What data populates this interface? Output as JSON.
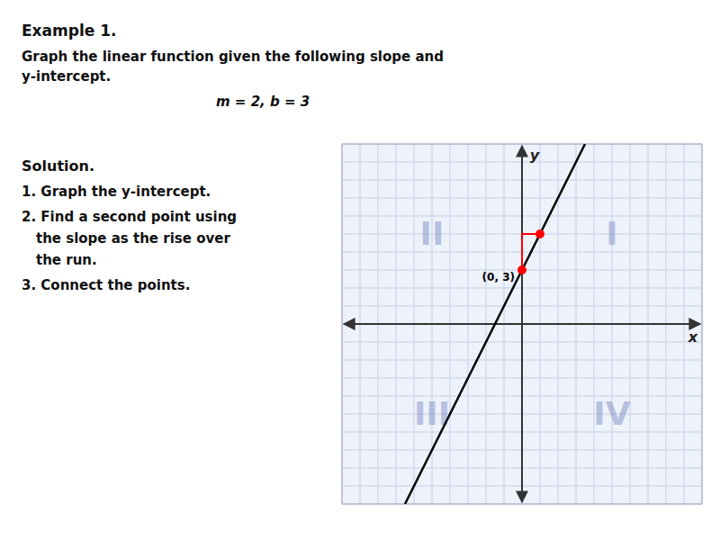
{
  "chart_data": {
    "type": "line",
    "title": "Example 1.",
    "annotations": [
      {
        "text": "Graph the linear function given the following slope and"
      },
      {
        "text": "y-intercept."
      },
      {
        "text": "m = 2, b = 3"
      },
      {
        "text": "Solution."
      },
      {
        "text": "1. Graph the y-intercept."
      },
      {
        "text": "2. Find a second point using"
      },
      {
        "text": "the slope as the rise over"
      },
      {
        "text": "the run."
      },
      {
        "text": "3. Connect the points."
      },
      {
        "text": "II",
        "x": -5,
        "y": 5
      },
      {
        "text": "I",
        "x": 5,
        "y": 5
      },
      {
        "text": "III",
        "x": -5,
        "y": -5
      },
      {
        "text": "IV",
        "x": 5,
        "y": -5
      },
      {
        "text": "(0, 3)",
        "x": 0,
        "y": 3
      }
    ],
    "x_label": "x",
    "y_label": "y",
    "xlim": [
      -10,
      10
    ],
    "ylim": [
      -10,
      10
    ],
    "xticks": [
      -10,
      -9,
      -8,
      -7,
      -6,
      -5,
      -4,
      -3,
      -2,
      -1,
      0,
      1,
      2,
      3,
      4,
      5,
      6,
      7,
      8,
      9,
      10
    ],
    "yticks": [
      -10,
      -9,
      -8,
      -7,
      -6,
      -5,
      -4,
      -3,
      -2,
      -1,
      0,
      1,
      2,
      3,
      4,
      5,
      6,
      7,
      8,
      9,
      10
    ],
    "grid": true,
    "tick_labels": false,
    "series": [
      {
        "type": "line",
        "color": "#000000",
        "x": [
          -6.5,
          3.5
        ],
        "values": [
          -10,
          10
        ]
      },
      {
        "type": "line",
        "color": "#ff0000",
        "x": [
          0,
          0,
          1
        ],
        "values": [
          3,
          5,
          5
        ]
      },
      {
        "type": "scatter",
        "color": "#ff0000",
        "x": [
          0,
          1
        ],
        "values": [
          3,
          5
        ]
      }
    ]
  }
}
